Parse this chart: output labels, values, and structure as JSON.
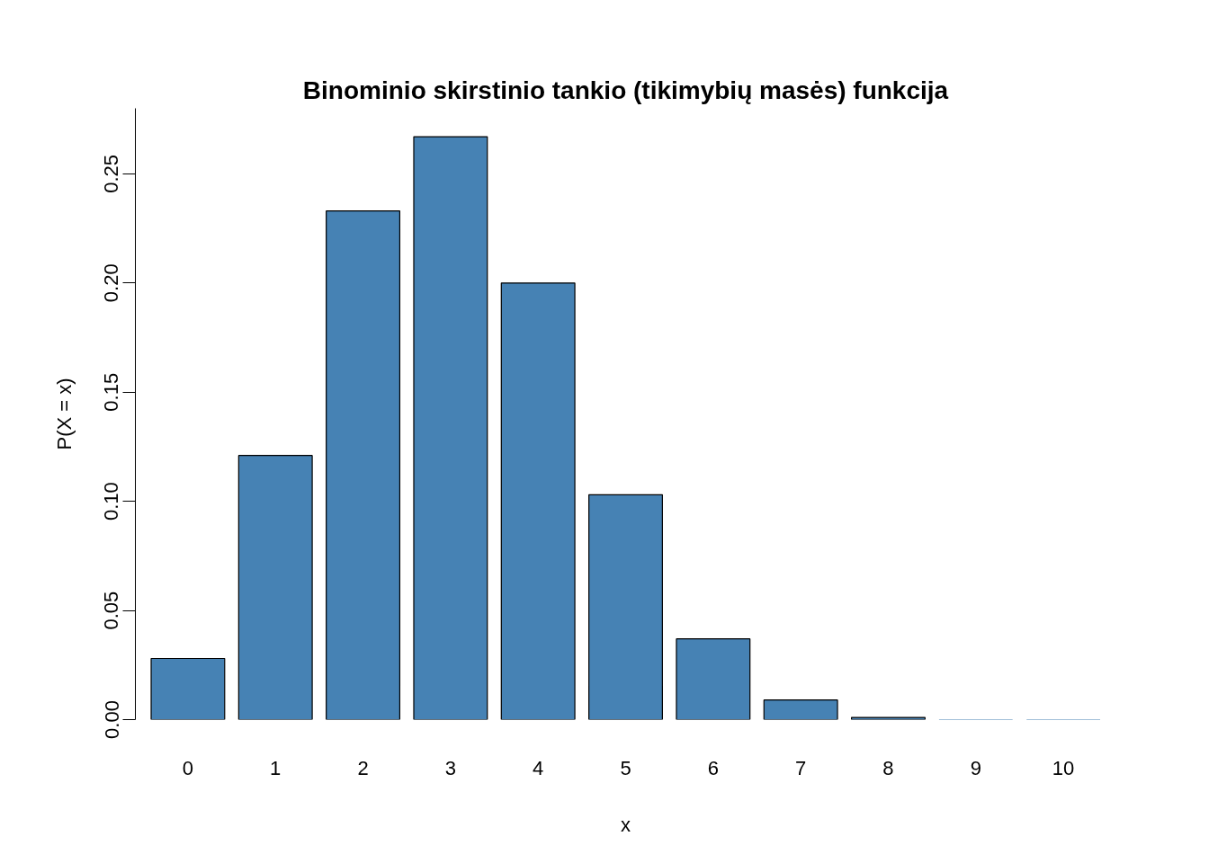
{
  "chart_data": {
    "type": "bar",
    "title": "Binominio skirstinio tankio (tikimybių masės) funkcija",
    "xlabel": "x",
    "ylabel": "P(X = x)",
    "categories": [
      "0",
      "1",
      "2",
      "3",
      "4",
      "5",
      "6",
      "7",
      "8",
      "9",
      "10"
    ],
    "values": [
      0.028,
      0.121,
      0.233,
      0.267,
      0.2,
      0.103,
      0.037,
      0.009,
      0.001,
      0.0,
      0.0
    ],
    "color": "#4682b4",
    "ylim": [
      0,
      0.28
    ],
    "yticks": [
      {
        "value": 0,
        "label": "0.00"
      },
      {
        "value": 0.05,
        "label": "0.05"
      },
      {
        "value": 0.1,
        "label": "0.10"
      },
      {
        "value": 0.15,
        "label": "0.15"
      },
      {
        "value": 0.2,
        "label": "0.20"
      },
      {
        "value": 0.25,
        "label": "0.25"
      }
    ],
    "grid": false
  }
}
